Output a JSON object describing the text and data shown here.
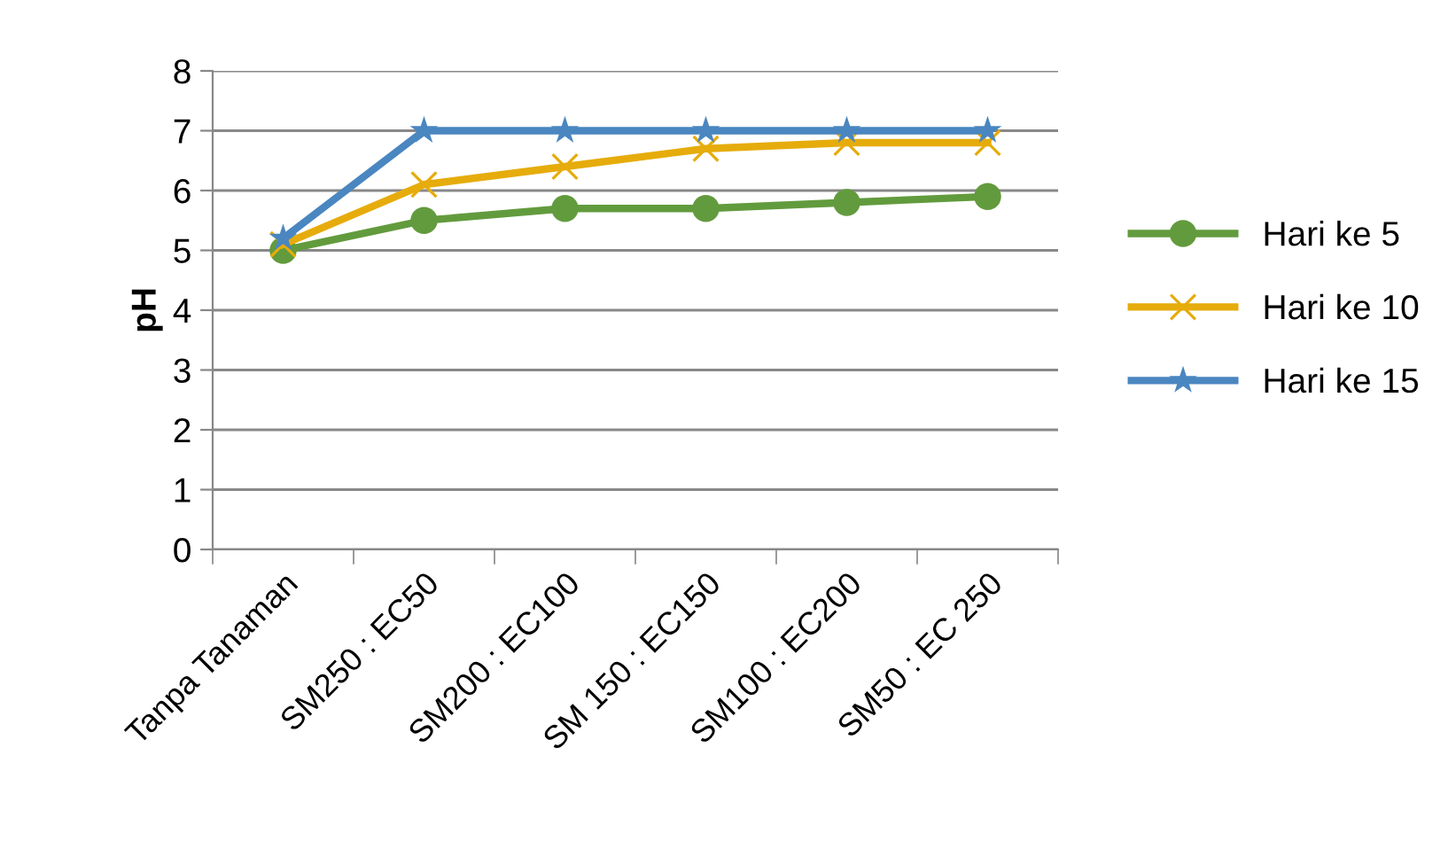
{
  "chart_data": {
    "type": "line",
    "ylabel": "pH",
    "categories": [
      "Tanpa Tanaman",
      "SM250 : EC50",
      "SM200 : EC100",
      "SM 150 : EC150",
      "SM100 : EC200",
      "SM50 : EC 250"
    ],
    "series": [
      {
        "name": "Hari ke 5",
        "color": "#629b3d",
        "marker": "circle",
        "values": [
          5,
          5.5,
          5.7,
          5.7,
          5.8,
          5.9
        ]
      },
      {
        "name": "Hari ke 10",
        "color": "#e6ac0c",
        "marker": "cross",
        "values": [
          5.1,
          6.1,
          6.4,
          6.7,
          6.8,
          6.8
        ]
      },
      {
        "name": "Hari ke 15",
        "color": "#4a86c0",
        "marker": "star",
        "values": [
          5.2,
          7,
          7,
          7,
          7,
          7
        ]
      }
    ],
    "ylim": [
      0,
      8
    ],
    "yticks": [
      0,
      1,
      2,
      3,
      4,
      5,
      6,
      7,
      8
    ],
    "grid": "y",
    "legend": "right"
  }
}
